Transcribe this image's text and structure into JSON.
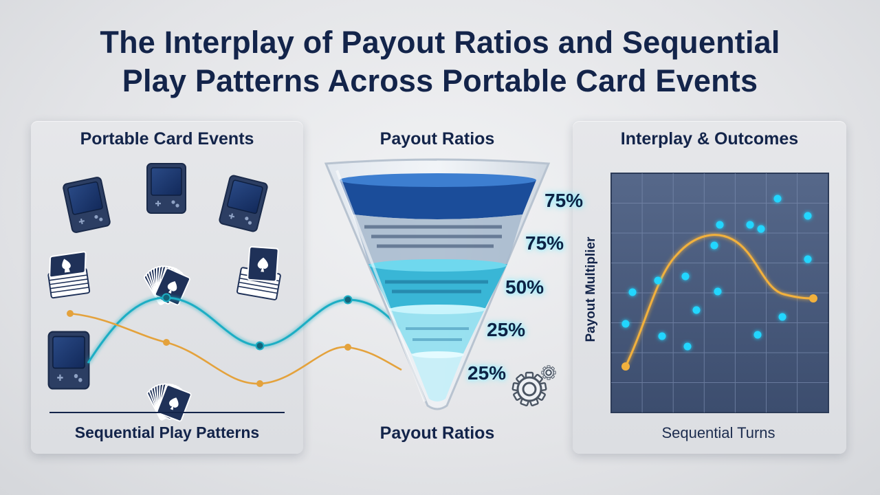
{
  "title": {
    "line1": "The Interplay of Payout Ratios and Sequential",
    "line2": "Play Patterns Across Portable Card Events"
  },
  "left_panel": {
    "heading": "Portable Card Events",
    "caption": "Sequential Play Patterns"
  },
  "center": {
    "heading": "Payout Ratios",
    "caption": "Payout Ratios",
    "ratios": [
      "75%",
      "75%",
      "50%",
      "25%",
      "25%"
    ]
  },
  "right_panel": {
    "heading": "Interplay & Outcomes",
    "xlabel": "Sequential Turns",
    "ylabel": "Payout Multiplier"
  },
  "icons": {
    "device": "handheld-console-icon",
    "cards": "playing-card-fan-icon",
    "deck": "card-deck-icon",
    "gear": "gear-icon"
  },
  "colors": {
    "navy": "#13244a",
    "teal": "#1eaec4",
    "orange": "#e4a23c",
    "cyan_dot": "#22d6ff",
    "grid_bg": "#46587a"
  }
}
